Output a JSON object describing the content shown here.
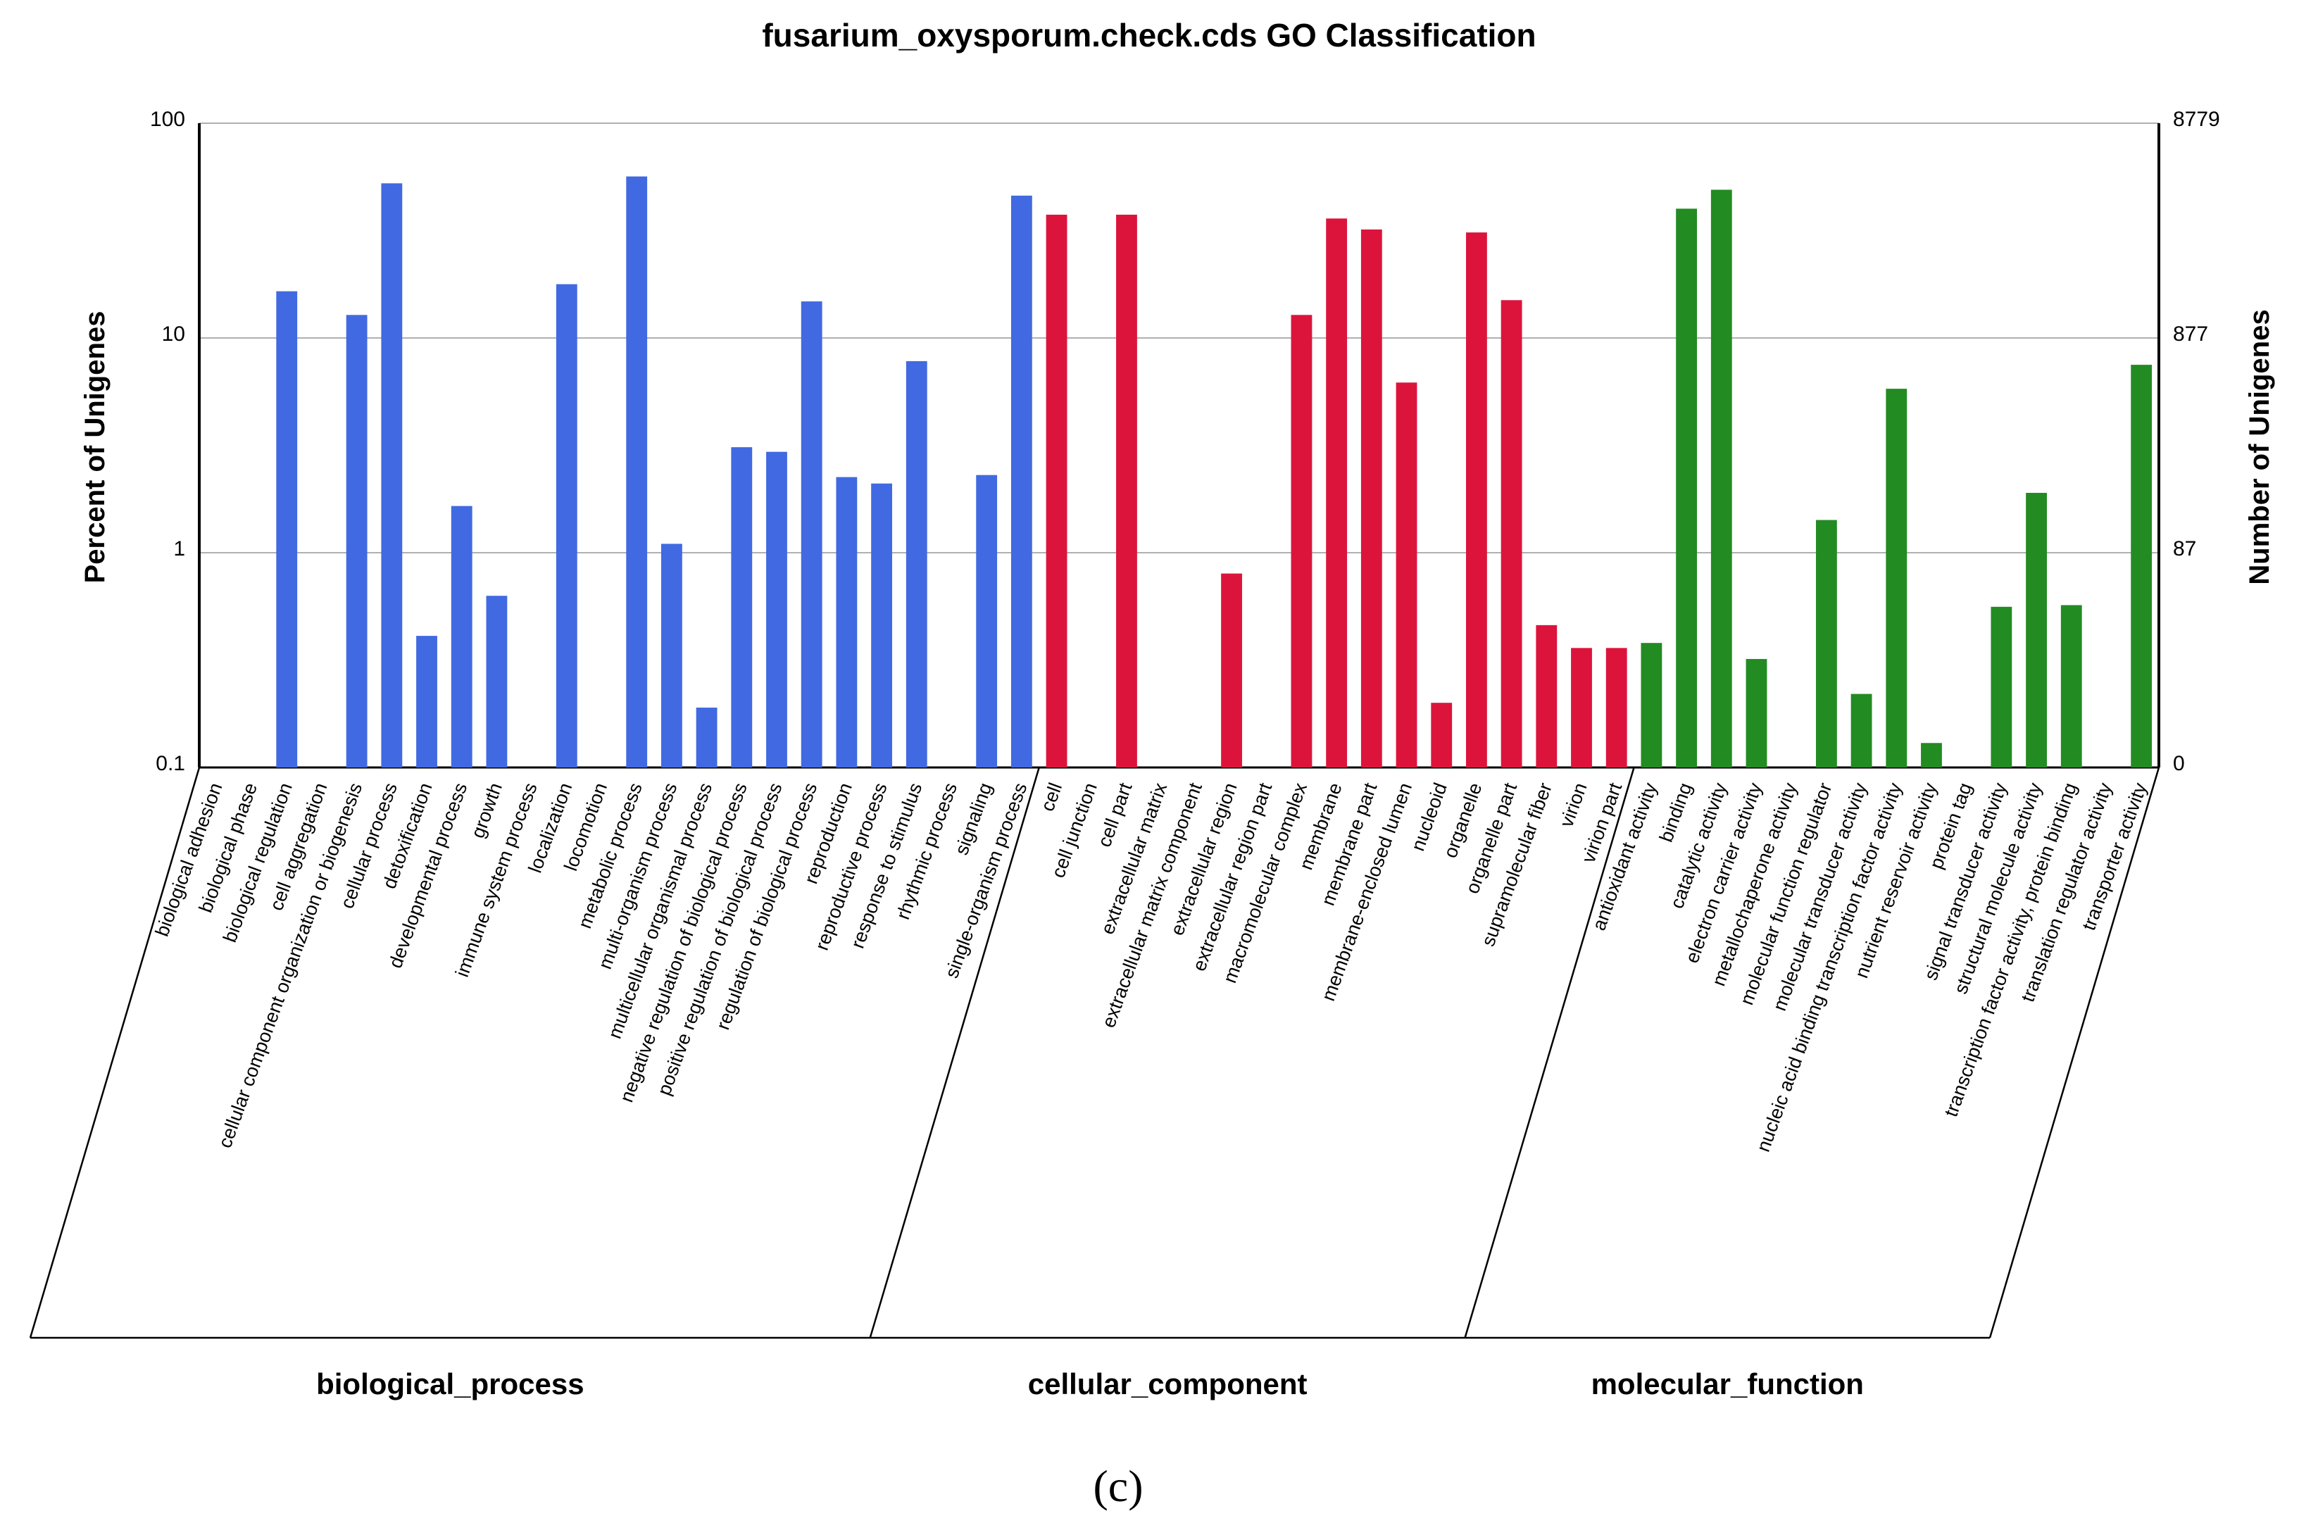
{
  "chart_data": {
    "type": "bar",
    "title": "fusarium_oxysporum.check.cds GO Classification",
    "ylabel_left": "Percent of Unigenes",
    "ylabel_right": "Number of Unigenes",
    "yscale": "log",
    "ylim": [
      0.1,
      100
    ],
    "left_ticks": [
      "100",
      "10",
      "1",
      "0.1"
    ],
    "right_ticks": [
      "8779",
      "877",
      "87",
      "0"
    ],
    "caption": "(c)",
    "groups": [
      {
        "name": "biological_process",
        "color": "#4169E1",
        "categories": [
          "biological adhesion",
          "biological phase",
          "biological regulation",
          "cell aggregation",
          "cellular component organization or biogenesis",
          "cellular process",
          "detoxification",
          "developmental process",
          "growth",
          "immune system process",
          "localization",
          "locomotion",
          "metabolic process",
          "multi-organism process",
          "multicellular organismal process",
          "negative regulation of biological process",
          "positive regulation of biological process",
          "regulation of biological process",
          "reproduction",
          "reproductive process",
          "response to stimulus",
          "rhythmic process",
          "signaling",
          "single-organism process"
        ],
        "values": [
          0,
          0,
          16.5,
          0,
          12.8,
          52.5,
          0.41,
          1.65,
          0.63,
          0,
          17.8,
          0,
          56.5,
          1.1,
          0.19,
          3.1,
          2.95,
          14.8,
          2.25,
          2.1,
          7.8,
          0,
          2.3,
          46
        ]
      },
      {
        "name": "cellular_component",
        "color": "#DC143C",
        "categories": [
          "cell",
          "cell junction",
          "cell part",
          "extracellular matrix",
          "extracellular matrix component",
          "extracellular region",
          "extracellular region part",
          "macromolecular complex",
          "membrane",
          "membrane part",
          "membrane-enclosed lumen",
          "nucleoid",
          "organelle",
          "organelle part",
          "supramolecular fiber",
          "virion",
          "virion part"
        ],
        "values": [
          37.5,
          0,
          37.5,
          0,
          0,
          0.8,
          0,
          12.8,
          36,
          32,
          6.2,
          0.2,
          31,
          15,
          0.46,
          0.36,
          0.36
        ]
      },
      {
        "name": "molecular_function",
        "color": "#228B22",
        "categories": [
          "antioxidant activity",
          "binding",
          "catalytic activity",
          "electron carrier activity",
          "metallochaperone activity",
          "molecular function regulator",
          "molecular transducer activity",
          "nucleic acid binding transcription factor activity",
          "nutrient reservoir activity",
          "protein tag",
          "signal transducer activity",
          "structural molecule activity",
          "transcription factor activity, protein binding",
          "translation regulator activity",
          "transporter activity"
        ],
        "values": [
          0.38,
          40,
          49,
          0.32,
          0,
          1.42,
          0.22,
          5.8,
          0.13,
          0,
          0.56,
          1.9,
          0.57,
          0,
          7.5
        ]
      }
    ]
  }
}
